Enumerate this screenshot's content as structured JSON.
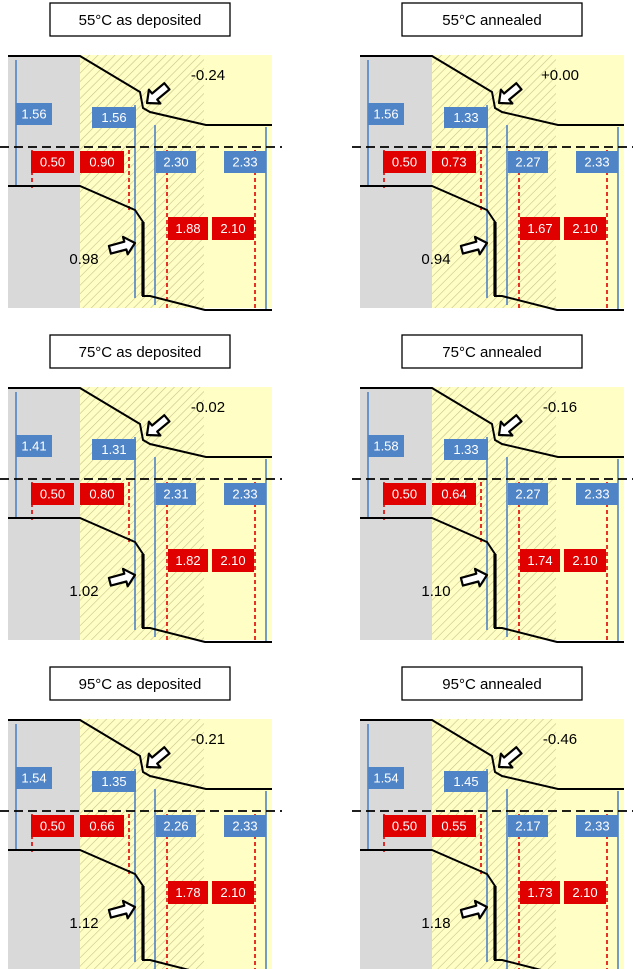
{
  "colors": {
    "gray": "#d9d9d9",
    "yellow": "#ffffc5",
    "hatch": "#c8c28a",
    "blue": "#4f84c6",
    "red": "#e00000",
    "black": "#000000"
  },
  "panels": [
    {
      "title": "55°C as deposited",
      "blue_labels": [
        "1.56",
        "1.56",
        "2.30",
        "2.33"
      ],
      "red_labels": [
        "0.50",
        "0.90",
        "1.88",
        "2.10"
      ],
      "top_offset": "-0.24",
      "bottom_offset": "0.98"
    },
    {
      "title": "55°C annealed",
      "blue_labels": [
        "1.56",
        "1.33",
        "2.27",
        "2.33"
      ],
      "red_labels": [
        "0.50",
        "0.73",
        "1.67",
        "2.10"
      ],
      "top_offset": "+0.00",
      "bottom_offset": "0.94"
    },
    {
      "title": "75°C as deposited",
      "blue_labels": [
        "1.41",
        "1.31",
        "2.31",
        "2.33"
      ],
      "red_labels": [
        "0.50",
        "0.80",
        "1.82",
        "2.10"
      ],
      "top_offset": "-0.02",
      "bottom_offset": "1.02"
    },
    {
      "title": "75°C annealed",
      "blue_labels": [
        "1.58",
        "1.33",
        "2.27",
        "2.33"
      ],
      "red_labels": [
        "0.50",
        "0.64",
        "1.74",
        "2.10"
      ],
      "top_offset": "-0.16",
      "bottom_offset": "1.10"
    },
    {
      "title": "95°C as deposited",
      "blue_labels": [
        "1.54",
        "1.35",
        "2.26",
        "2.33"
      ],
      "red_labels": [
        "0.50",
        "0.66",
        "1.78",
        "2.10"
      ],
      "top_offset": "-0.21",
      "bottom_offset": "1.12"
    },
    {
      "title": "95°C annealed",
      "blue_labels": [
        "1.54",
        "1.45",
        "2.17",
        "2.33"
      ],
      "red_labels": [
        "0.50",
        "0.55",
        "1.73",
        "2.10"
      ],
      "top_offset": "-0.46",
      "bottom_offset": "1.18"
    }
  ]
}
